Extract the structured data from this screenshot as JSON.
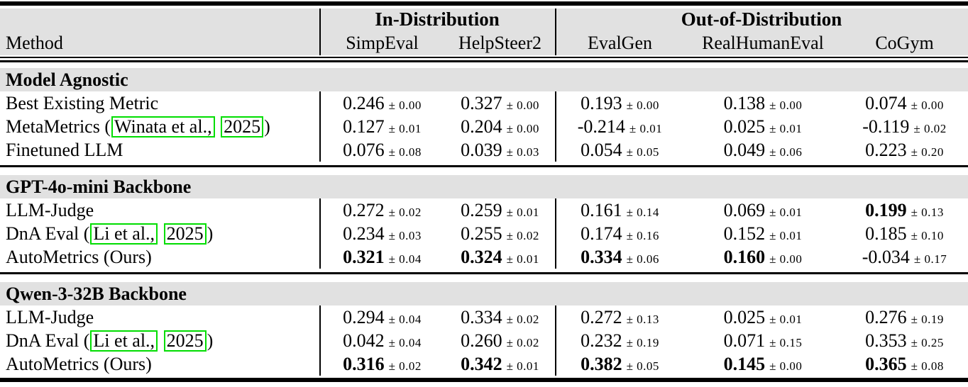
{
  "colors": {
    "page_bg": "#ffffff",
    "text_color": "#000000",
    "rule_color": "#000000",
    "band_bg": "#e1e1e1",
    "citation_box_border": "#00dd00"
  },
  "table": {
    "pm": "±",
    "header": {
      "method_label": "Method",
      "groups": [
        {
          "label": "In-Distribution"
        },
        {
          "label": "Out-of-Distribution"
        }
      ],
      "columns": [
        "SimpEval",
        "HelpSteer2",
        "EvalGen",
        "RealHumanEval",
        "CoGym"
      ]
    },
    "sections": [
      {
        "title": "Model Agnostic",
        "rows": [
          {
            "method": [
              {
                "t": "Best Existing Metric"
              }
            ],
            "values": [
              {
                "v": "0.246",
                "s": "0.00"
              },
              {
                "v": "0.327",
                "s": "0.00"
              },
              {
                "v": "0.193",
                "s": "0.00"
              },
              {
                "v": "0.138",
                "s": "0.00"
              },
              {
                "v": "0.074",
                "s": "0.00"
              }
            ]
          },
          {
            "method": [
              {
                "t": "MetaMetrics ("
              },
              {
                "t": "Winata et al.,",
                "box": true
              },
              {
                "t": " "
              },
              {
                "t": "2025",
                "box": true
              },
              {
                "t": ")"
              }
            ],
            "values": [
              {
                "v": "0.127",
                "s": "0.01"
              },
              {
                "v": "0.204",
                "s": "0.00"
              },
              {
                "v": "-0.214",
                "s": "0.01"
              },
              {
                "v": "0.025",
                "s": "0.01"
              },
              {
                "v": "-0.119",
                "s": "0.02"
              }
            ]
          },
          {
            "method": [
              {
                "t": "Finetuned LLM"
              }
            ],
            "values": [
              {
                "v": "0.076",
                "s": "0.08"
              },
              {
                "v": "0.039",
                "s": "0.03"
              },
              {
                "v": "0.054",
                "s": "0.05"
              },
              {
                "v": "0.049",
                "s": "0.06"
              },
              {
                "v": "0.223",
                "s": "0.20"
              }
            ]
          }
        ]
      },
      {
        "title": "GPT-4o-mini Backbone",
        "rows": [
          {
            "method": [
              {
                "t": "LLM-Judge"
              }
            ],
            "values": [
              {
                "v": "0.272",
                "s": "0.02"
              },
              {
                "v": "0.259",
                "s": "0.01"
              },
              {
                "v": "0.161",
                "s": "0.14"
              },
              {
                "v": "0.069",
                "s": "0.01"
              },
              {
                "v": "0.199",
                "s": "0.13",
                "b": true
              }
            ]
          },
          {
            "method": [
              {
                "t": "DnA Eval ("
              },
              {
                "t": "Li et al.,",
                "box": true
              },
              {
                "t": " "
              },
              {
                "t": "2025",
                "box": true
              },
              {
                "t": ")"
              }
            ],
            "values": [
              {
                "v": "0.234",
                "s": "0.03"
              },
              {
                "v": "0.255",
                "s": "0.02"
              },
              {
                "v": "0.174",
                "s": "0.16"
              },
              {
                "v": "0.152",
                "s": "0.01"
              },
              {
                "v": "0.185",
                "s": "0.10"
              }
            ]
          },
          {
            "method": [
              {
                "t": "AutoMetrics (Ours)"
              }
            ],
            "values": [
              {
                "v": "0.321",
                "s": "0.04",
                "b": true
              },
              {
                "v": "0.324",
                "s": "0.01",
                "b": true
              },
              {
                "v": "0.334",
                "s": "0.06",
                "b": true
              },
              {
                "v": "0.160",
                "s": "0.00",
                "b": true
              },
              {
                "v": "-0.034",
                "s": "0.17"
              }
            ]
          }
        ]
      },
      {
        "title": "Qwen-3-32B Backbone",
        "rows": [
          {
            "method": [
              {
                "t": "LLM-Judge"
              }
            ],
            "values": [
              {
                "v": "0.294",
                "s": "0.04"
              },
              {
                "v": "0.334",
                "s": "0.02"
              },
              {
                "v": "0.272",
                "s": "0.13"
              },
              {
                "v": "0.025",
                "s": "0.01"
              },
              {
                "v": "0.276",
                "s": "0.19"
              }
            ]
          },
          {
            "method": [
              {
                "t": "DnA Eval ("
              },
              {
                "t": "Li et al.,",
                "box": true
              },
              {
                "t": " "
              },
              {
                "t": "2025",
                "box": true
              },
              {
                "t": ")"
              }
            ],
            "values": [
              {
                "v": "0.042",
                "s": "0.04"
              },
              {
                "v": "0.260",
                "s": "0.02"
              },
              {
                "v": "0.232",
                "s": "0.19"
              },
              {
                "v": "0.071",
                "s": "0.15"
              },
              {
                "v": "0.353",
                "s": "0.25"
              }
            ]
          },
          {
            "method": [
              {
                "t": "AutoMetrics (Ours)"
              }
            ],
            "values": [
              {
                "v": "0.316",
                "s": "0.02",
                "b": true
              },
              {
                "v": "0.342",
                "s": "0.01",
                "b": true
              },
              {
                "v": "0.382",
                "s": "0.05",
                "b": true
              },
              {
                "v": "0.145",
                "s": "0.00",
                "b": true
              },
              {
                "v": "0.365",
                "s": "0.08",
                "b": true
              }
            ]
          }
        ]
      }
    ]
  }
}
